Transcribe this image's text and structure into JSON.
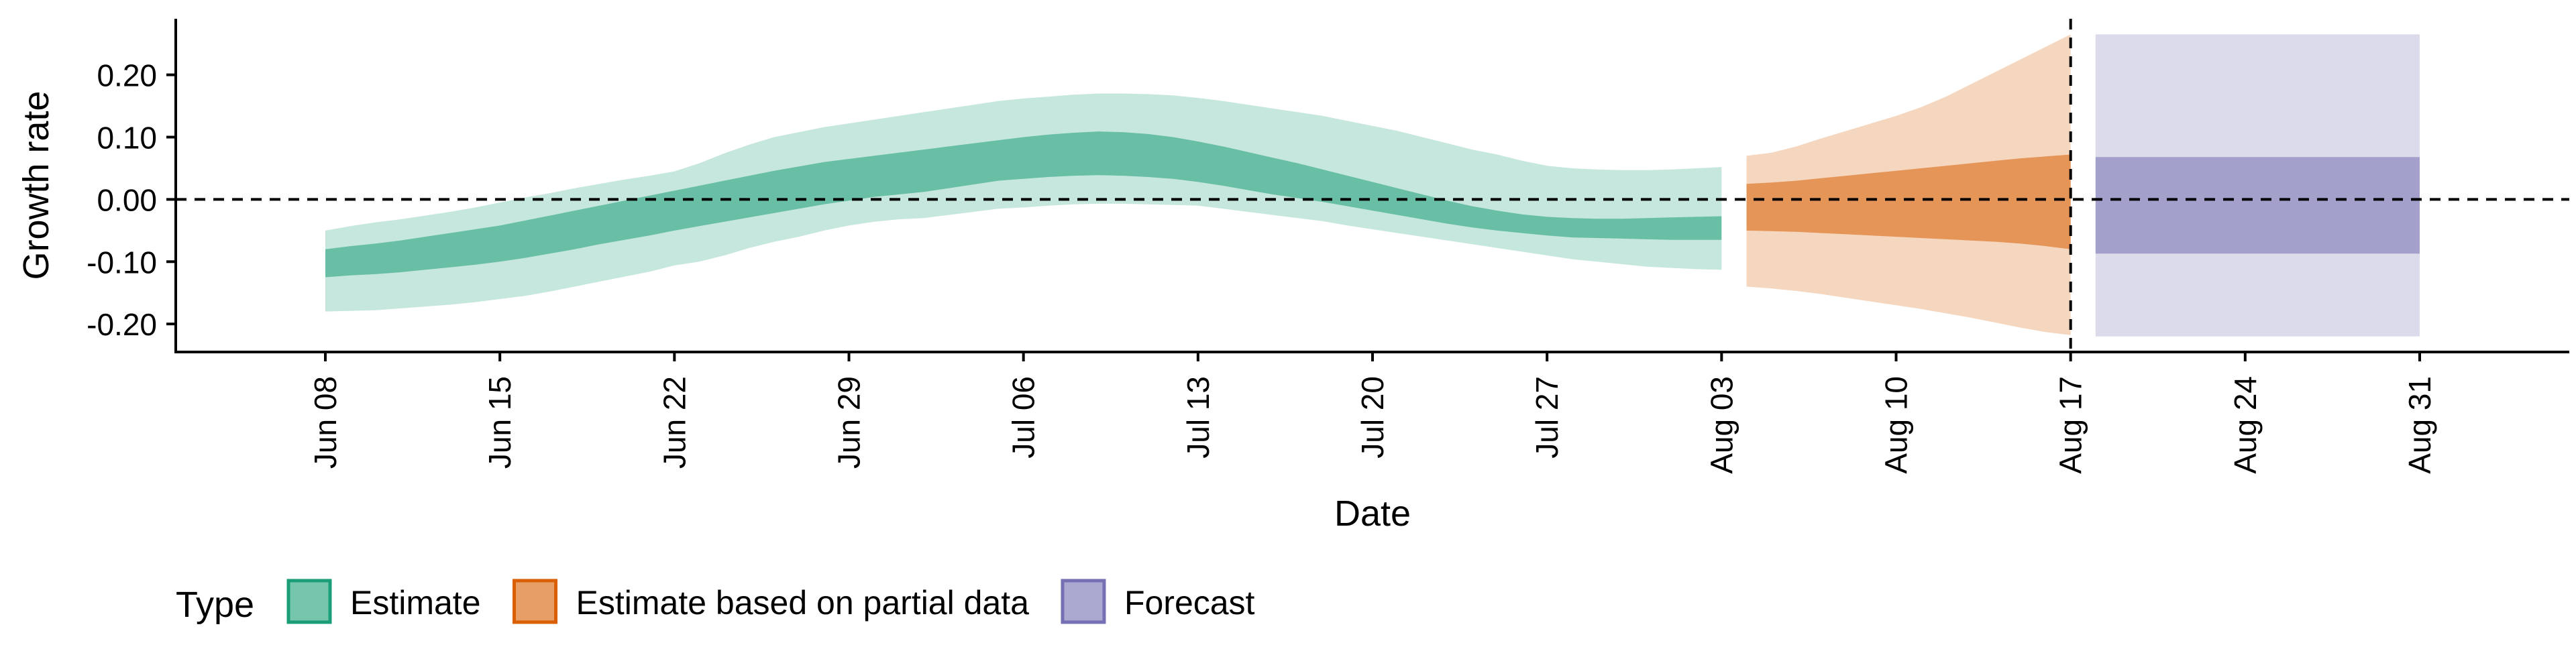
{
  "chart_data": {
    "type": "area",
    "xlabel": "Date",
    "ylabel": "Growth rate",
    "ylim": [
      -0.245,
      0.29
    ],
    "xlim": [
      "2020-06-02",
      "2020-09-06"
    ],
    "y_ticks": [
      -0.2,
      -0.1,
      0.0,
      0.1,
      0.2
    ],
    "y_tick_labels": [
      "-0.20",
      "-0.10",
      "0.00",
      "0.10",
      "0.20"
    ],
    "x_ticks": [
      "2020-06-08",
      "2020-06-15",
      "2020-06-22",
      "2020-06-29",
      "2020-07-06",
      "2020-07-13",
      "2020-07-20",
      "2020-07-27",
      "2020-08-03",
      "2020-08-10",
      "2020-08-17",
      "2020-08-24",
      "2020-08-31"
    ],
    "x_tick_labels": [
      "Jun 08",
      "Jun 15",
      "Jun 22",
      "Jun 29",
      "Jul 06",
      "Jul 13",
      "Jul 20",
      "Jul 27",
      "Aug 03",
      "Aug 10",
      "Aug 17",
      "Aug 24",
      "Aug 31"
    ],
    "reference_hline": 0.0,
    "reference_vline": "2020-08-17",
    "grid": false,
    "legend": {
      "title": "Type",
      "position": "bottom-left",
      "entries": [
        "Estimate",
        "Estimate based on partial data",
        "Forecast"
      ]
    },
    "colors": {
      "Estimate": "#1b9e77",
      "Estimate based on partial data": "#d95f02",
      "Forecast": "#7570b3"
    },
    "series": [
      {
        "name": "Estimate",
        "x": [
          "2020-06-08",
          "2020-06-09",
          "2020-06-10",
          "2020-06-11",
          "2020-06-12",
          "2020-06-13",
          "2020-06-14",
          "2020-06-15",
          "2020-06-16",
          "2020-06-17",
          "2020-06-18",
          "2020-06-19",
          "2020-06-20",
          "2020-06-21",
          "2020-06-22",
          "2020-06-23",
          "2020-06-24",
          "2020-06-25",
          "2020-06-26",
          "2020-06-27",
          "2020-06-28",
          "2020-06-29",
          "2020-06-30",
          "2020-07-01",
          "2020-07-02",
          "2020-07-03",
          "2020-07-04",
          "2020-07-05",
          "2020-07-06",
          "2020-07-07",
          "2020-07-08",
          "2020-07-09",
          "2020-07-10",
          "2020-07-11",
          "2020-07-12",
          "2020-07-13",
          "2020-07-14",
          "2020-07-15",
          "2020-07-16",
          "2020-07-17",
          "2020-07-18",
          "2020-07-19",
          "2020-07-20",
          "2020-07-21",
          "2020-07-22",
          "2020-07-23",
          "2020-07-24",
          "2020-07-25",
          "2020-07-26",
          "2020-07-27",
          "2020-07-28",
          "2020-07-29",
          "2020-07-30",
          "2020-07-31",
          "2020-08-01",
          "2020-08-02",
          "2020-08-03"
        ],
        "lower90": [
          -0.18,
          -0.179,
          -0.178,
          -0.175,
          -0.172,
          -0.169,
          -0.165,
          -0.16,
          -0.155,
          -0.148,
          -0.14,
          -0.132,
          -0.124,
          -0.116,
          -0.106,
          -0.1,
          -0.09,
          -0.078,
          -0.068,
          -0.06,
          -0.05,
          -0.042,
          -0.036,
          -0.032,
          -0.03,
          -0.025,
          -0.02,
          -0.015,
          -0.013,
          -0.01,
          -0.008,
          -0.007,
          -0.007,
          -0.008,
          -0.009,
          -0.01,
          -0.015,
          -0.02,
          -0.025,
          -0.03,
          -0.035,
          -0.042,
          -0.048,
          -0.054,
          -0.06,
          -0.066,
          -0.072,
          -0.078,
          -0.084,
          -0.09,
          -0.096,
          -0.1,
          -0.104,
          -0.108,
          -0.11,
          -0.112,
          -0.113
        ],
        "upper90": [
          -0.05,
          -0.043,
          -0.037,
          -0.032,
          -0.026,
          -0.02,
          -0.013,
          -0.005,
          0.003,
          0.01,
          0.018,
          0.025,
          0.032,
          0.038,
          0.045,
          0.058,
          0.074,
          0.088,
          0.1,
          0.108,
          0.116,
          0.122,
          0.128,
          0.134,
          0.14,
          0.146,
          0.152,
          0.158,
          0.162,
          0.165,
          0.168,
          0.17,
          0.17,
          0.169,
          0.167,
          0.163,
          0.158,
          0.152,
          0.146,
          0.14,
          0.134,
          0.126,
          0.118,
          0.11,
          0.1,
          0.09,
          0.08,
          0.072,
          0.062,
          0.054,
          0.05,
          0.048,
          0.047,
          0.047,
          0.048,
          0.05,
          0.052
        ],
        "lower50": [
          -0.125,
          -0.122,
          -0.12,
          -0.117,
          -0.113,
          -0.109,
          -0.105,
          -0.1,
          -0.094,
          -0.087,
          -0.08,
          -0.072,
          -0.065,
          -0.058,
          -0.05,
          -0.043,
          -0.036,
          -0.029,
          -0.022,
          -0.015,
          -0.008,
          -0.002,
          0.004,
          0.008,
          0.012,
          0.018,
          0.024,
          0.03,
          0.033,
          0.036,
          0.038,
          0.039,
          0.038,
          0.036,
          0.033,
          0.028,
          0.022,
          0.015,
          0.008,
          0.002,
          -0.004,
          -0.011,
          -0.018,
          -0.025,
          -0.032,
          -0.039,
          -0.045,
          -0.05,
          -0.054,
          -0.058,
          -0.061,
          -0.062,
          -0.063,
          -0.064,
          -0.065,
          -0.065,
          -0.065
        ],
        "upper50": [
          -0.08,
          -0.075,
          -0.071,
          -0.066,
          -0.06,
          -0.054,
          -0.048,
          -0.042,
          -0.034,
          -0.026,
          -0.018,
          -0.01,
          -0.002,
          0.006,
          0.014,
          0.022,
          0.03,
          0.038,
          0.046,
          0.053,
          0.06,
          0.065,
          0.07,
          0.075,
          0.08,
          0.085,
          0.09,
          0.095,
          0.1,
          0.104,
          0.107,
          0.109,
          0.108,
          0.105,
          0.1,
          0.093,
          0.085,
          0.076,
          0.067,
          0.058,
          0.048,
          0.038,
          0.028,
          0.018,
          0.008,
          -0.002,
          -0.011,
          -0.018,
          -0.024,
          -0.028,
          -0.03,
          -0.031,
          -0.031,
          -0.03,
          -0.029,
          -0.028,
          -0.027
        ]
      },
      {
        "name": "Estimate based on partial data",
        "x": [
          "2020-08-04",
          "2020-08-05",
          "2020-08-06",
          "2020-08-07",
          "2020-08-08",
          "2020-08-09",
          "2020-08-10",
          "2020-08-11",
          "2020-08-12",
          "2020-08-13",
          "2020-08-14",
          "2020-08-15",
          "2020-08-16",
          "2020-08-17"
        ],
        "lower90": [
          -0.14,
          -0.143,
          -0.147,
          -0.152,
          -0.158,
          -0.164,
          -0.17,
          -0.176,
          -0.183,
          -0.19,
          -0.198,
          -0.206,
          -0.213,
          -0.218
        ],
        "upper90": [
          0.07,
          0.075,
          0.085,
          0.098,
          0.11,
          0.122,
          0.134,
          0.148,
          0.165,
          0.185,
          0.205,
          0.225,
          0.245,
          0.265
        ],
        "lower50": [
          -0.05,
          -0.051,
          -0.052,
          -0.054,
          -0.056,
          -0.058,
          -0.06,
          -0.062,
          -0.064,
          -0.066,
          -0.068,
          -0.071,
          -0.075,
          -0.08
        ],
        "upper50": [
          0.025,
          0.027,
          0.03,
          0.034,
          0.038,
          0.042,
          0.046,
          0.05,
          0.054,
          0.058,
          0.062,
          0.066,
          0.069,
          0.072
        ]
      },
      {
        "name": "Forecast",
        "x": [
          "2020-08-18",
          "2020-08-31"
        ],
        "lower90": [
          -0.22,
          -0.22
        ],
        "upper90": [
          0.265,
          0.265
        ],
        "lower50": [
          -0.087,
          -0.087
        ],
        "upper50": [
          0.068,
          0.068
        ]
      }
    ]
  }
}
